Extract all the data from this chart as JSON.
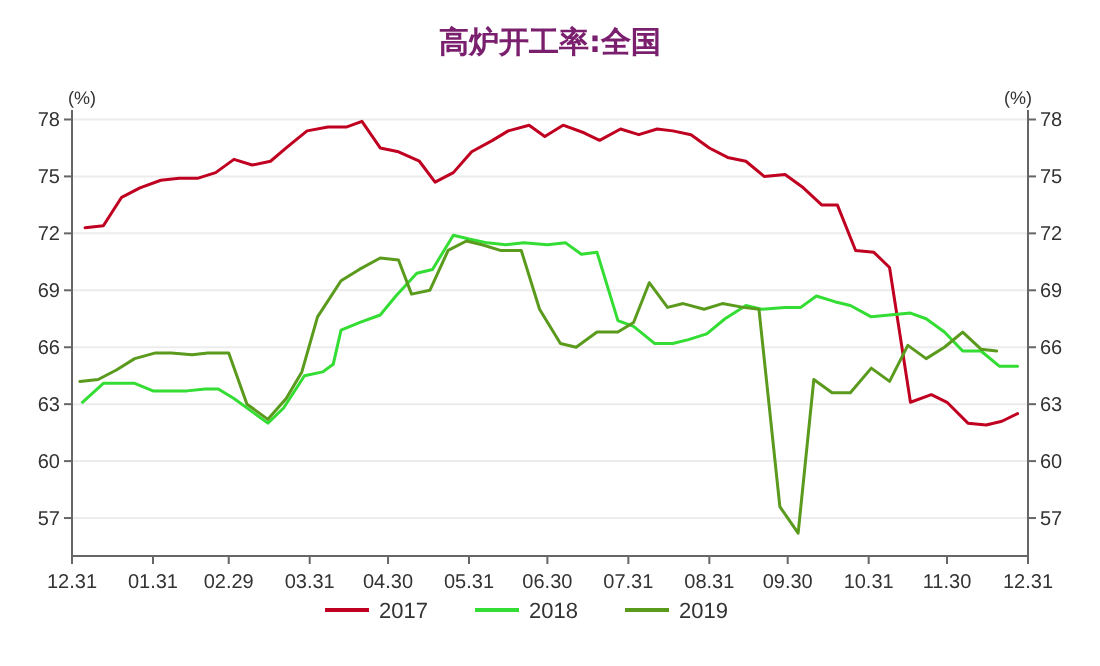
{
  "chart_data": {
    "type": "line",
    "title": "高炉开工率:全国",
    "ylabel": "(%)",
    "y2label": "(%)",
    "xlim": [
      "2019-12-31",
      "2020-12-31"
    ],
    "xticks": [
      {
        "value": "2019-12-31",
        "label": "12.31"
      },
      {
        "value": "2020-01-31",
        "label": "01.31"
      },
      {
        "value": "2020-02-29",
        "label": "02.29"
      },
      {
        "value": "2020-03-31",
        "label": "03.31"
      },
      {
        "value": "2020-04-30",
        "label": "04.30"
      },
      {
        "value": "2020-05-31",
        "label": "05.31"
      },
      {
        "value": "2020-06-30",
        "label": "06.30"
      },
      {
        "value": "2020-07-31",
        "label": "07.31"
      },
      {
        "value": "2020-08-31",
        "label": "08.31"
      },
      {
        "value": "2020-09-30",
        "label": "09.30"
      },
      {
        "value": "2020-10-31",
        "label": "10.31"
      },
      {
        "value": "2020-11-30",
        "label": "11.30"
      },
      {
        "value": "2020-12-31",
        "label": "12.31"
      }
    ],
    "ylim": [
      55,
      78.5
    ],
    "yticks": [
      57,
      60,
      63,
      66,
      69,
      72,
      75,
      78
    ],
    "y2lim": [
      55,
      78.5
    ],
    "y2ticks": [
      57,
      60,
      63,
      66,
      69,
      72,
      75,
      78
    ],
    "grid": "y",
    "legend": "bottom",
    "line_style": "solid",
    "marker": "none",
    "series": [
      {
        "name": "2017",
        "color": "#c00020",
        "x": [
          "2020-01-05",
          "2020-01-12",
          "2020-01-19",
          "2020-01-26",
          "2020-02-03",
          "2020-02-10",
          "2020-02-17",
          "2020-02-24",
          "2020-03-02",
          "2020-03-09",
          "2020-03-16",
          "2020-03-22",
          "2020-03-30",
          "2020-04-07",
          "2020-04-14",
          "2020-04-20",
          "2020-04-27",
          "2020-05-04",
          "2020-05-12",
          "2020-05-18",
          "2020-05-25",
          "2020-06-01",
          "2020-06-09",
          "2020-06-15",
          "2020-06-23",
          "2020-06-29",
          "2020-07-06",
          "2020-07-14",
          "2020-07-20",
          "2020-07-28",
          "2020-08-04",
          "2020-08-11",
          "2020-08-17",
          "2020-08-24",
          "2020-08-31",
          "2020-09-07",
          "2020-09-14",
          "2020-09-21",
          "2020-09-29",
          "2020-10-06",
          "2020-10-13",
          "2020-10-19",
          "2020-10-26",
          "2020-11-02",
          "2020-11-08",
          "2020-11-16",
          "2020-11-24",
          "2020-11-30",
          "2020-12-08",
          "2020-12-15",
          "2020-12-21",
          "2020-12-27"
        ],
        "values": [
          72.3,
          72.4,
          73.9,
          74.4,
          74.8,
          74.9,
          74.9,
          75.2,
          75.9,
          75.6,
          75.8,
          76.5,
          77.4,
          77.6,
          77.6,
          77.9,
          76.5,
          76.3,
          75.8,
          74.7,
          75.2,
          76.3,
          76.9,
          77.4,
          77.7,
          77.1,
          77.7,
          77.3,
          76.9,
          77.5,
          77.2,
          77.5,
          77.4,
          77.2,
          76.5,
          76,
          75.8,
          75,
          75.1,
          74.4,
          73.5,
          73.5,
          71.1,
          71,
          70.2,
          63.1,
          63.5,
          63.1,
          62,
          61.9,
          62.1,
          62.5
        ]
      },
      {
        "name": "2018",
        "color": "#33dd33",
        "x": [
          "2020-01-04",
          "2020-01-12",
          "2020-01-18",
          "2020-01-24",
          "2020-01-31",
          "2020-02-07",
          "2020-02-13",
          "2020-02-20",
          "2020-02-25",
          "2020-03-02",
          "2020-03-08",
          "2020-03-15",
          "2020-03-21",
          "2020-03-29",
          "2020-04-05",
          "2020-04-09",
          "2020-04-12",
          "2020-04-19",
          "2020-04-27",
          "2020-05-03",
          "2020-05-11",
          "2020-05-17",
          "2020-05-25",
          "2020-05-31",
          "2020-06-07",
          "2020-06-14",
          "2020-06-21",
          "2020-06-30",
          "2020-07-07",
          "2020-07-13",
          "2020-07-19",
          "2020-07-27",
          "2020-08-02",
          "2020-08-10",
          "2020-08-17",
          "2020-08-23",
          "2020-08-30",
          "2020-09-06",
          "2020-09-14",
          "2020-09-20",
          "2020-09-29",
          "2020-10-05",
          "2020-10-11",
          "2020-10-18",
          "2020-10-24",
          "2020-11-01",
          "2020-11-08",
          "2020-11-16",
          "2020-11-22",
          "2020-11-29",
          "2020-12-06",
          "2020-12-13",
          "2020-12-20",
          "2020-12-27"
        ],
        "values": [
          63.1,
          64.1,
          64.1,
          64.1,
          63.7,
          63.7,
          63.7,
          63.8,
          63.8,
          63.3,
          62.7,
          62,
          62.8,
          64.5,
          64.7,
          65.1,
          66.9,
          67.3,
          67.7,
          68.7,
          69.9,
          70.1,
          71.9,
          71.7,
          71.5,
          71.4,
          71.5,
          71.4,
          71.5,
          70.9,
          71,
          67.4,
          67.1,
          66.2,
          66.2,
          66.4,
          66.7,
          67.5,
          68.2,
          68,
          68.1,
          68.1,
          68.7,
          68.4,
          68.2,
          67.6,
          67.7,
          67.8,
          67.5,
          66.8,
          65.8,
          65.8,
          65,
          65
        ]
      },
      {
        "name": "2019",
        "color": "#5a9a1c",
        "x": [
          "2020-01-03",
          "2020-01-10",
          "2020-01-17",
          "2020-01-24",
          "2020-02-01",
          "2020-02-07",
          "2020-02-15",
          "2020-02-21",
          "2020-02-29",
          "2020-03-07",
          "2020-03-15",
          "2020-03-22",
          "2020-03-28",
          "2020-04-03",
          "2020-04-12",
          "2020-04-19",
          "2020-04-27",
          "2020-05-04",
          "2020-05-09",
          "2020-05-16",
          "2020-05-23",
          "2020-05-30",
          "2020-06-05",
          "2020-06-12",
          "2020-06-20",
          "2020-06-27",
          "2020-07-05",
          "2020-07-11",
          "2020-07-19",
          "2020-07-27",
          "2020-08-02",
          "2020-08-08",
          "2020-08-15",
          "2020-08-21",
          "2020-08-29",
          "2020-09-05",
          "2020-09-13",
          "2020-09-19",
          "2020-09-27",
          "2020-10-04",
          "2020-10-10",
          "2020-10-17",
          "2020-10-24",
          "2020-11-01",
          "2020-11-08",
          "2020-11-15",
          "2020-11-22",
          "2020-11-29",
          "2020-12-06",
          "2020-12-13",
          "2020-12-19"
        ],
        "values": [
          64.2,
          64.3,
          64.8,
          65.4,
          65.7,
          65.7,
          65.6,
          65.7,
          65.7,
          63,
          62.2,
          63.3,
          64.7,
          67.6,
          69.5,
          70.1,
          70.7,
          70.6,
          68.8,
          69,
          71.1,
          71.6,
          71.4,
          71.1,
          71.1,
          68,
          66.2,
          66,
          66.8,
          66.8,
          67.3,
          69.4,
          68.1,
          68.3,
          68,
          68.3,
          68.1,
          68,
          57.6,
          56.2,
          64.3,
          63.6,
          63.6,
          64.9,
          64.2,
          66.1,
          65.4,
          66,
          66.8,
          65.9,
          65.8
        ]
      }
    ]
  }
}
